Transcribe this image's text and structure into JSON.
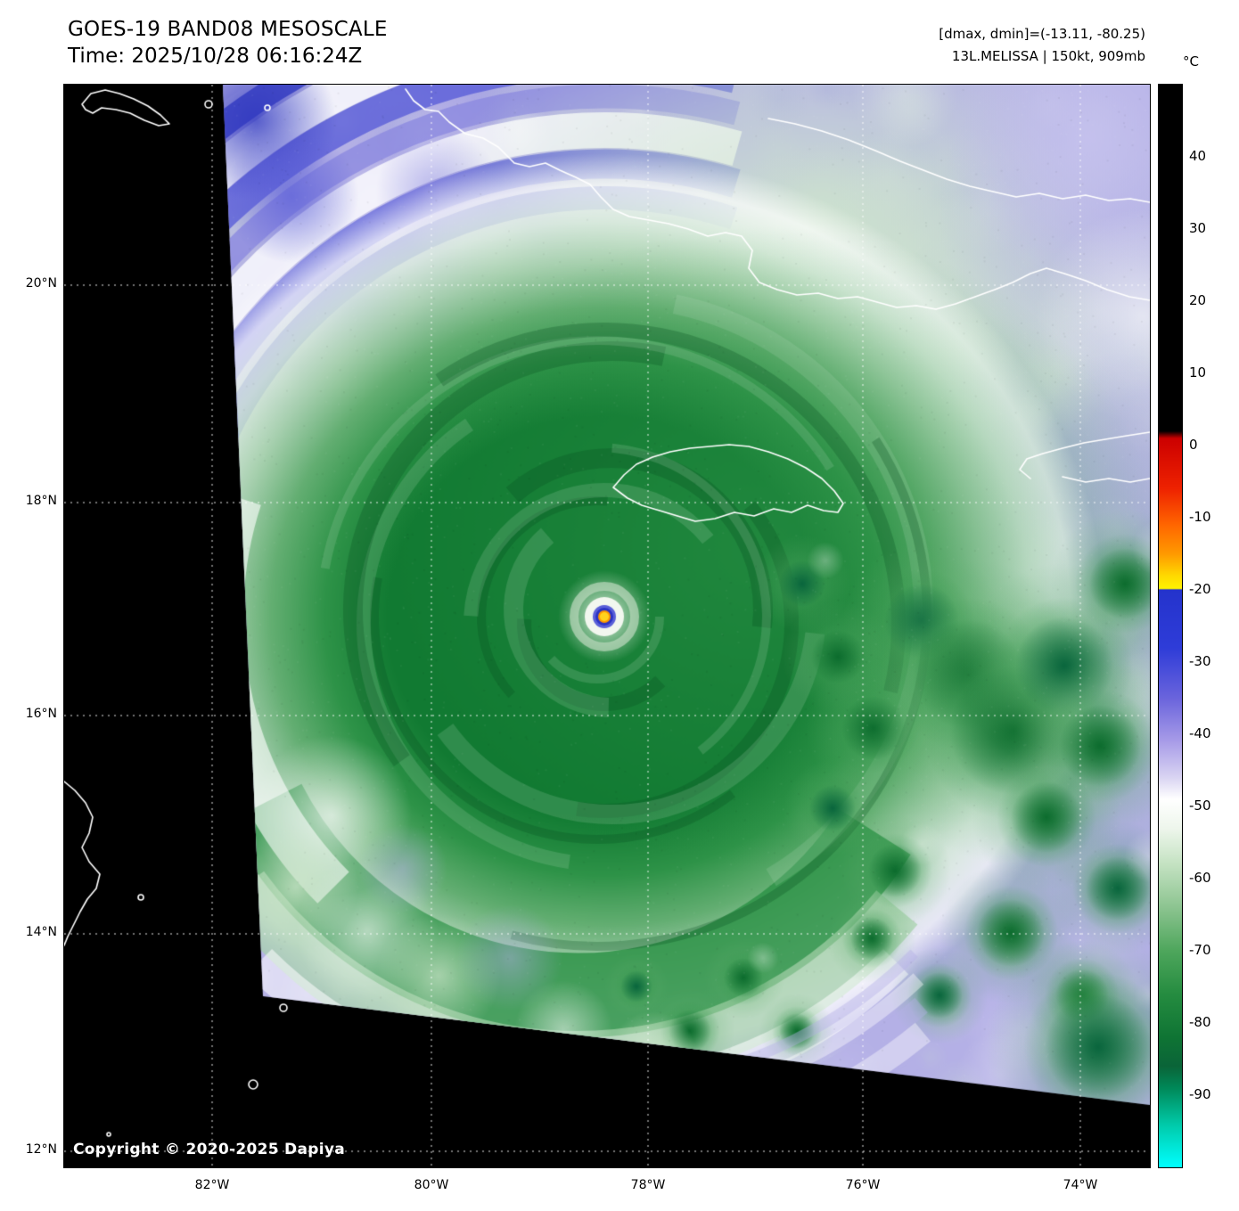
{
  "header": {
    "title": "GOES-19 BAND08 MESOSCALE",
    "time": "Time: 2025/10/28 06:16:24Z",
    "range_info": "[dmax, dmin]=(-13.11, -80.25)",
    "storm_info": "13L.MELISSA | 150kt, 909mb"
  },
  "colorbar": {
    "unit": "°C",
    "range": [
      50,
      -100
    ],
    "tick_values": [
      40,
      30,
      20,
      10,
      0,
      -10,
      -20,
      -30,
      -40,
      -50,
      -60,
      -70,
      -80,
      -90
    ],
    "stops": [
      {
        "t": 50,
        "color": "#000000"
      },
      {
        "t": 2,
        "color": "#000000"
      },
      {
        "t": 1,
        "color": "#cc0000"
      },
      {
        "t": -6,
        "color": "#ee2200"
      },
      {
        "t": -11,
        "color": "#ff6600"
      },
      {
        "t": -15,
        "color": "#ff9900"
      },
      {
        "t": -18,
        "color": "#ffd800"
      },
      {
        "t": -19.8,
        "color": "#fff200"
      },
      {
        "t": -20,
        "color": "#2433cc"
      },
      {
        "t": -28,
        "color": "#2e3cd8"
      },
      {
        "t": -35,
        "color": "#6a64dc"
      },
      {
        "t": -41,
        "color": "#a89ce8"
      },
      {
        "t": -46,
        "color": "#d9d4f2"
      },
      {
        "t": -49,
        "color": "#ffffff"
      },
      {
        "t": -53,
        "color": "#eef6ec"
      },
      {
        "t": -58,
        "color": "#c4e2c2"
      },
      {
        "t": -64,
        "color": "#8cc490"
      },
      {
        "t": -70,
        "color": "#4ea65c"
      },
      {
        "t": -76,
        "color": "#258c40"
      },
      {
        "t": -82,
        "color": "#0f7434"
      },
      {
        "t": -86,
        "color": "#0a6438"
      },
      {
        "t": -89,
        "color": "#008858"
      },
      {
        "t": -94,
        "color": "#00c9a8"
      },
      {
        "t": -100,
        "color": "#00ffff"
      }
    ]
  },
  "map": {
    "lat_labels": [
      "20°N",
      "18°N",
      "16°N",
      "14°N",
      "12°N"
    ],
    "lon_labels": [
      "82°W",
      "80°W",
      "78°W",
      "76°W",
      "74°W"
    ],
    "copyright": "Copyright © 2020-2025 Dapiya"
  },
  "scene": {
    "black": "#000000",
    "lavender": "#b4b0e6",
    "periwinkle": "#8c8ae0",
    "blue_mid": "#5a5ed8",
    "blue_deep": "#3038c0",
    "white": "#ffffff",
    "pale_green": "#cfe7cc",
    "light_green": "#a5d2aa",
    "mid_green": "#5fae6c",
    "green": "#2e9348",
    "deep_green": "#117a32",
    "cell_dark": "#07633c",
    "eye_core": "#ffd21e",
    "eye_ring_orange": "#ff9900",
    "eye_ring_blue": "#2a33c4",
    "eye_ring_white": "#f2f7ef",
    "coastline": "#ffffff",
    "gridline": "#ffffff"
  }
}
